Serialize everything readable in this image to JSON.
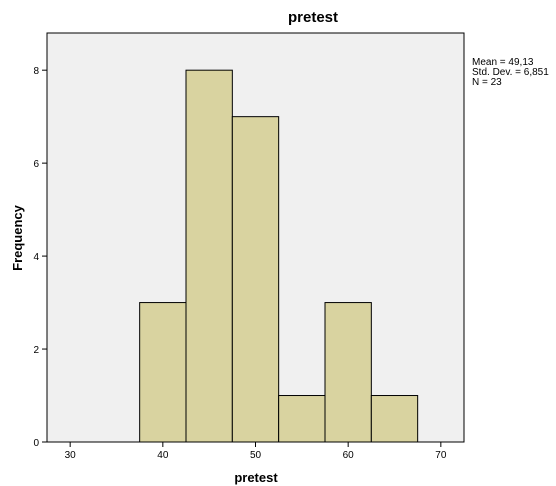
{
  "chart_data": {
    "type": "bar",
    "title": "pretest",
    "xlabel": "pretest",
    "ylabel": "Frequency",
    "bin_width": 5,
    "bins": [
      {
        "start": 37.5,
        "end": 42.5,
        "value": 3
      },
      {
        "start": 42.5,
        "end": 47.5,
        "value": 8
      },
      {
        "start": 47.5,
        "end": 52.5,
        "value": 7
      },
      {
        "start": 52.5,
        "end": 57.5,
        "value": 1
      },
      {
        "start": 57.5,
        "end": 62.5,
        "value": 3
      },
      {
        "start": 62.5,
        "end": 67.5,
        "value": 1
      }
    ],
    "xlim": [
      27.5,
      72.5
    ],
    "ylim": [
      0,
      8.8
    ],
    "xticks": [
      30,
      40,
      50,
      60,
      70
    ],
    "yticks": [
      0,
      2,
      4,
      6,
      8
    ],
    "grid": false,
    "stats": {
      "mean": "Mean = 49,13",
      "std": "Std. Dev. = 6,851",
      "n": "N = 23"
    },
    "colors": {
      "plot_background": "#f0f0f0",
      "bar_fill": "#d9d3a0",
      "bar_stroke": "#000000"
    }
  }
}
